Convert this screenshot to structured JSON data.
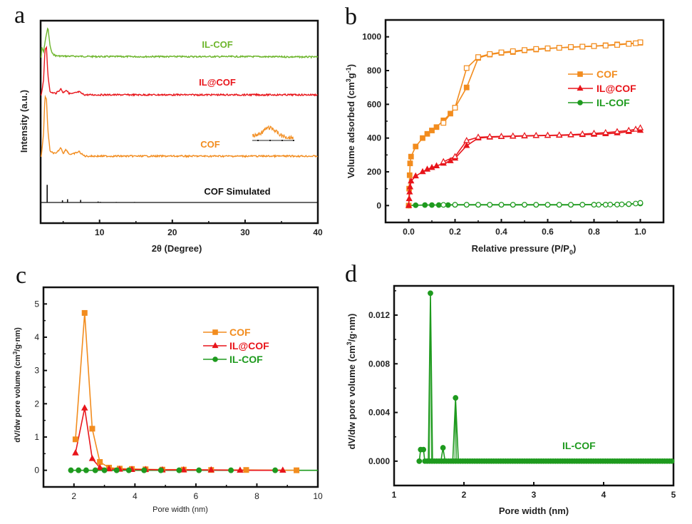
{
  "colors": {
    "cof": "#f28c1e",
    "il_at_cof": "#e8151b",
    "il_cof": "#1e9a1e",
    "il_cof_xrd": "#6cb52b",
    "simulated": "#111111"
  },
  "chart_data": [
    {
      "panel": "a",
      "type": "line",
      "title": "",
      "xlabel": "2θ (Degree)",
      "ylabel": "Intensity (a.u.)",
      "xlim": [
        2,
        40
      ],
      "xticks": [
        10,
        20,
        30,
        40
      ],
      "yticks": [],
      "grid": false,
      "legend": "inline labels",
      "series": [
        {
          "name": "IL-COF",
          "color": "#6cb52b",
          "offset": 4.2,
          "x": [
            2,
            2.3,
            2.6,
            2.9,
            3.2,
            3.5,
            4,
            5,
            6,
            10,
            20,
            30,
            40
          ],
          "y": [
            0.25,
            0.12,
            0.45,
            0.7,
            0.25,
            0.08,
            0.03,
            0.02,
            0.02,
            0.01,
            0.01,
            0.01,
            0.0
          ]
        },
        {
          "name": "IL@COF",
          "color": "#e8151b",
          "offset": 3.0,
          "x": [
            2,
            2.3,
            2.5,
            2.7,
            2.9,
            3.2,
            4,
            4.7,
            5.0,
            5.4,
            5.8,
            6.2,
            7.2,
            7.6,
            8,
            15,
            40
          ],
          "y": [
            0.0,
            0.3,
            0.9,
            0.95,
            0.4,
            0.05,
            0.03,
            0.12,
            0.04,
            0.1,
            0.03,
            0.02,
            0.06,
            0.02,
            0.0,
            0.0,
            0.0
          ]
        },
        {
          "name": "COF",
          "color": "#f28c1e",
          "offset": 1.45,
          "x": [
            2,
            2.3,
            2.5,
            2.7,
            2.9,
            3.2,
            4,
            4.7,
            5.0,
            5.4,
            5.8,
            6.2,
            7.2,
            7.6,
            8,
            15,
            40
          ],
          "y": [
            0.0,
            0.4,
            1.05,
            1.0,
            0.45,
            0.08,
            0.04,
            0.15,
            0.05,
            0.12,
            0.04,
            0.03,
            0.08,
            0.03,
            0.0,
            0.0,
            0.0
          ]
        },
        {
          "name": "COF Simulated",
          "color": "#111111",
          "offset": 0.5,
          "sticks_x": [
            2.8,
            4.9,
            5.6,
            7.4,
            9.8,
            10.1,
            12.3,
            14.8
          ],
          "sticks_y": [
            0.55,
            0.07,
            0.1,
            0.08,
            0.03,
            0.02,
            0.015,
            0.015
          ]
        }
      ],
      "labels": [
        {
          "text": "IL-COF",
          "color": "#6cb52b"
        },
        {
          "text": "IL@COF",
          "color": "#e8151b"
        },
        {
          "text": "COF",
          "color": "#f28c1e"
        },
        {
          "text": "COF Simulated",
          "color": "#111111"
        }
      ],
      "inset": "zoomed broad hump of COF trace (orange, noisy)"
    },
    {
      "panel": "b",
      "type": "line",
      "title": "",
      "xlabel": "Relative pressure (P/P0)",
      "ylabel": "Volume adsorbed (cm3g-1)",
      "xlim": [
        -0.1,
        1.1
      ],
      "ylim": [
        -100,
        1100
      ],
      "xticks": [
        0.0,
        0.2,
        0.4,
        0.6,
        0.8,
        1.0
      ],
      "yticks": [
        0,
        200,
        400,
        600,
        800,
        1000
      ],
      "grid": false,
      "legend": "right-middle",
      "series": [
        {
          "name": "COF",
          "color": "#f28c1e",
          "marker": "square",
          "adsorption": {
            "x": [
              0.0,
              0.002,
              0.004,
              0.006,
              0.01,
              0.03,
              0.06,
              0.08,
              0.1,
              0.12,
              0.15,
              0.18,
              0.2,
              0.25,
              0.3,
              0.35,
              0.4,
              0.45,
              0.5,
              0.55,
              0.6,
              0.65,
              0.7,
              0.75,
              0.8,
              0.85,
              0.9,
              0.95,
              1.0
            ],
            "y": [
              0,
              100,
              180,
              250,
              290,
              350,
              400,
              425,
              445,
              465,
              505,
              545,
              580,
              700,
              875,
              895,
              905,
              910,
              920,
              925,
              930,
              935,
              938,
              942,
              945,
              950,
              955,
              960,
              965
            ]
          },
          "desorption": {
            "x": [
              1.0,
              0.98,
              0.95,
              0.9,
              0.85,
              0.8,
              0.75,
              0.7,
              0.65,
              0.6,
              0.55,
              0.5,
              0.45,
              0.4,
              0.35,
              0.3,
              0.25,
              0.2,
              0.15
            ],
            "y": [
              968,
              962,
              958,
              952,
              948,
              945,
              942,
              940,
              935,
              932,
              928,
              922,
              915,
              908,
              898,
              880,
              815,
              580,
              490
            ]
          }
        },
        {
          "name": "IL@COF",
          "color": "#e8151b",
          "marker": "triangle",
          "adsorption": {
            "x": [
              0.0,
              0.002,
              0.004,
              0.006,
              0.01,
              0.03,
              0.06,
              0.08,
              0.1,
              0.12,
              0.15,
              0.18,
              0.2,
              0.25,
              0.3,
              0.35,
              0.4,
              0.45,
              0.5,
              0.55,
              0.6,
              0.65,
              0.7,
              0.75,
              0.8,
              0.85,
              0.9,
              0.95,
              1.0
            ],
            "y": [
              0,
              40,
              80,
              110,
              145,
              175,
              200,
              215,
              225,
              235,
              250,
              265,
              280,
              355,
              400,
              405,
              408,
              410,
              412,
              414,
              415,
              416,
              418,
              420,
              422,
              425,
              430,
              438,
              445
            ]
          },
          "desorption": {
            "x": [
              1.0,
              0.98,
              0.95,
              0.9,
              0.85,
              0.8,
              0.75,
              0.7,
              0.65,
              0.6,
              0.55,
              0.5,
              0.45,
              0.4,
              0.35,
              0.3,
              0.25,
              0.2,
              0.15
            ],
            "y": [
              460,
              452,
              445,
              438,
              432,
              428,
              424,
              420,
              418,
              416,
              415,
              414,
              412,
              410,
              408,
              405,
              385,
              290,
              260
            ]
          }
        },
        {
          "name": "IL-COF",
          "color": "#1e9a1e",
          "marker": "circle",
          "adsorption": {
            "x": [
              0.0,
              0.03,
              0.07,
              0.1,
              0.13,
              0.17,
              0.2,
              0.25,
              0.3,
              0.35,
              0.4,
              0.45,
              0.5,
              0.55,
              0.6,
              0.65,
              0.7,
              0.75,
              0.8,
              0.85,
              0.9,
              0.95,
              1.0
            ],
            "y": [
              0,
              2,
              3,
              3,
              3,
              3,
              4,
              4,
              4,
              4,
              4,
              4,
              4,
              4,
              4,
              4,
              4,
              5,
              5,
              5,
              6,
              8,
              12
            ]
          },
          "desorption": {
            "x": [
              1.0,
              0.98,
              0.95,
              0.92,
              0.9,
              0.87,
              0.85,
              0.82,
              0.8,
              0.75,
              0.7,
              0.65,
              0.6,
              0.55,
              0.5,
              0.45,
              0.4,
              0.35,
              0.3,
              0.25,
              0.2,
              0.15
            ],
            "y": [
              16,
              12,
              9,
              7,
              6,
              6,
              5,
              5,
              5,
              5,
              5,
              5,
              5,
              5,
              5,
              5,
              5,
              5,
              5,
              5,
              5,
              4
            ]
          }
        }
      ]
    },
    {
      "panel": "c",
      "type": "line",
      "title": "",
      "xlabel": "Pore width (nm)",
      "ylabel": "dV/dw pore volume (cm3/g·nm)",
      "xlim": [
        1,
        10
      ],
      "ylim": [
        -0.5,
        5.5
      ],
      "xticks": [
        2,
        4,
        6,
        8,
        10
      ],
      "yticks": [
        0,
        1,
        2,
        3,
        4,
        5
      ],
      "grid": false,
      "legend": "top-right",
      "series": [
        {
          "name": "COF",
          "color": "#f28c1e",
          "marker": "square",
          "x": [
            2.05,
            2.35,
            2.6,
            2.85,
            3.15,
            3.5,
            3.9,
            4.35,
            4.9,
            5.6,
            6.5,
            7.65,
            9.3
          ],
          "y": [
            0.93,
            4.73,
            1.25,
            0.25,
            0.08,
            0.05,
            0.04,
            0.03,
            0.02,
            0.02,
            0.01,
            0.01,
            0.0
          ]
        },
        {
          "name": "IL@COF",
          "color": "#e8151b",
          "marker": "triangle",
          "x": [
            2.05,
            2.35,
            2.6,
            2.85,
            3.15,
            3.5,
            3.9,
            4.35,
            4.9,
            5.6,
            6.5,
            7.45,
            8.85
          ],
          "y": [
            0.52,
            1.87,
            0.35,
            0.08,
            0.04,
            0.03,
            0.02,
            0.02,
            0.01,
            0.01,
            0.01,
            0.0,
            0.0
          ]
        },
        {
          "name": "IL-COF",
          "color": "#1e9a1e",
          "marker": "circle",
          "x": [
            1.9,
            2.15,
            2.4,
            2.7,
            3.0,
            3.4,
            3.8,
            4.3,
            4.85,
            5.45,
            6.1,
            7.15,
            8.6
          ],
          "y": [
            0,
            0,
            0,
            0,
            0,
            0,
            0,
            0,
            0,
            0,
            0,
            0,
            0
          ]
        }
      ]
    },
    {
      "panel": "d",
      "type": "line",
      "title": "",
      "xlabel": "Pore width (nm)",
      "ylabel": "dV/dw pore volume (cm3/g·nm)",
      "xlim": [
        1,
        5
      ],
      "ylim": [
        -0.002,
        0.0144
      ],
      "xticks": [
        1,
        2,
        3,
        4,
        5
      ],
      "yticks": [
        0.0,
        0.004,
        0.008,
        0.012
      ],
      "grid": false,
      "legend": "inline label IL-COF",
      "series": [
        {
          "name": "IL-COF",
          "color": "#1e9a1e",
          "marker": "circle",
          "peaks": [
            {
              "x": 1.36,
              "y": 0.0
            },
            {
              "x": 1.38,
              "y": 0.00095
            },
            {
              "x": 1.42,
              "y": 0.00095
            },
            {
              "x": 1.52,
              "y": 0.0138
            },
            {
              "x": 1.7,
              "y": 0.0011
            },
            {
              "x": 1.88,
              "y": 0.0052
            }
          ],
          "baseline_start": 1.44,
          "baseline_end": 5.0,
          "baseline_step": 0.034
        }
      ],
      "label": "IL-COF"
    }
  ],
  "panels": {
    "a": {
      "letter": "a",
      "xlabel": "2θ (Degree)",
      "ylabel": "Intensity (a.u.)"
    },
    "b": {
      "letter": "b",
      "xlabel_main": "Relative pressure (P/P",
      "xlabel_sub": "0",
      "xlabel_end": ")",
      "ylabel_main": "Volume adsorbed (cm",
      "ylabel_sup1": "3",
      "ylabel_mid": "g",
      "ylabel_sup2": "-1",
      "ylabel_end": ")"
    },
    "c": {
      "letter": "c",
      "xlabel": "Pore width (nm)",
      "ylabel_main": "dV/dw pore volume (cm",
      "ylabel_sup": "3",
      "ylabel_end": "/g·nm)"
    },
    "d": {
      "letter": "d",
      "xlabel": "Pore width (nm)",
      "ylabel_main": "dV/dw pore volume (cm",
      "ylabel_sup": "3",
      "ylabel_end": "/g·nm)",
      "series_label": "IL-COF"
    }
  },
  "legend": {
    "cof": "COF",
    "il_at_cof": "IL@COF",
    "il_cof": "IL-COF"
  }
}
